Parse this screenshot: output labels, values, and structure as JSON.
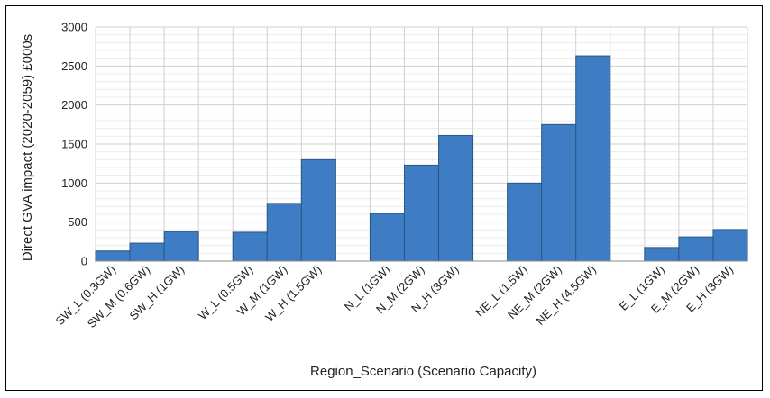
{
  "chart_data": {
    "type": "bar",
    "title": "",
    "xlabel": "Region_Scenario (Scenario Capacity)",
    "ylabel": "Direct GVA impact (2020-2059) £000s",
    "ylim": [
      0,
      3000
    ],
    "yticks": [
      0,
      500,
      1000,
      1500,
      2000,
      2500,
      3000
    ],
    "grid": true,
    "legend": "none",
    "bar_color": "#3e7cc4",
    "categories": [
      "SW_L (0.3GW)",
      "SW_M (0.6GW)",
      "SW_H (1GW)",
      "",
      "W_L (0.5GW)",
      "W_M (1GW)",
      "W_H (1.5GW)",
      "",
      "N_L (1GW)",
      "N_M (2GW)",
      "N_H (3GW)",
      "",
      "NE_L (1.5W)",
      "NE_M (2GW)",
      "NE_H (4.5GW)",
      "",
      "E_L (1GW)",
      "E_M (2GW)",
      "E_H (3GW)"
    ],
    "values": [
      130,
      230,
      380,
      null,
      370,
      740,
      1300,
      null,
      610,
      1230,
      1610,
      null,
      1000,
      1750,
      2630,
      null,
      175,
      310,
      405
    ]
  }
}
